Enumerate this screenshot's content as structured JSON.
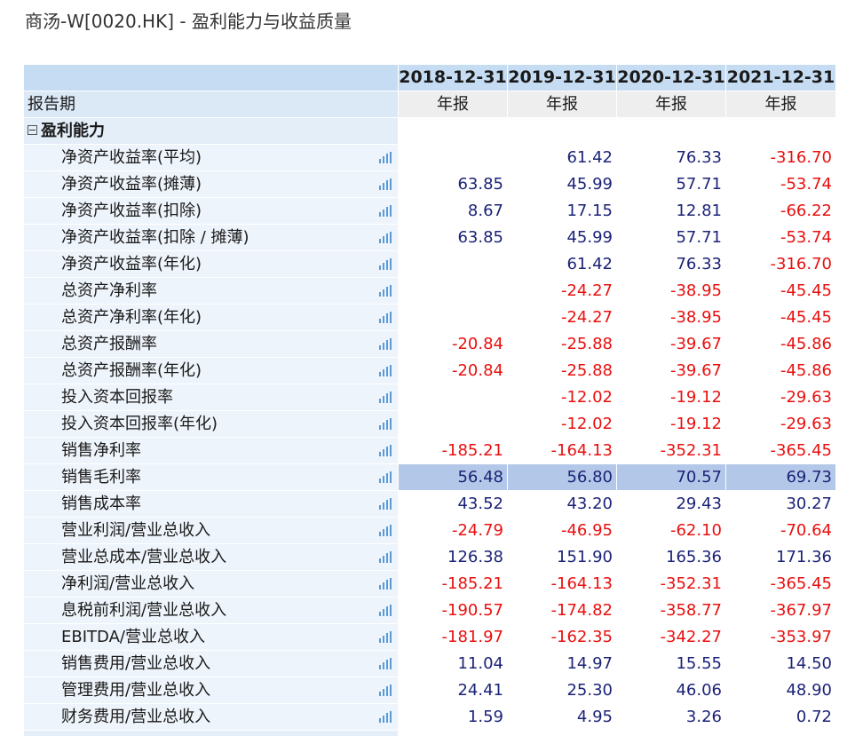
{
  "title": "商汤-W[0020.HK] - 盈利能力与收益质量",
  "header": {
    "period_label": "报告期",
    "years": [
      "2018-12-31",
      "2019-12-31",
      "2020-12-31",
      "2021-12-31"
    ],
    "types": [
      "年报",
      "年报",
      "年报",
      "年报"
    ]
  },
  "section": {
    "label": "盈利能力",
    "toggle_icon": "minus-box-icon"
  },
  "chart_icon": "bar-chart-icon",
  "colors": {
    "positive": "#1c2377",
    "negative": "#e8100f",
    "highlight": "#b3c8e8"
  },
  "rows": [
    {
      "label": "净资产收益率(平均)",
      "values": [
        "",
        "61.42",
        "76.33",
        "-316.70"
      ]
    },
    {
      "label": "净资产收益率(摊薄)",
      "values": [
        "63.85",
        "45.99",
        "57.71",
        "-53.74"
      ]
    },
    {
      "label": "净资产收益率(扣除)",
      "values": [
        "8.67",
        "17.15",
        "12.81",
        "-66.22"
      ]
    },
    {
      "label": "净资产收益率(扣除 / 摊薄)",
      "values": [
        "63.85",
        "45.99",
        "57.71",
        "-53.74"
      ]
    },
    {
      "label": "净资产收益率(年化)",
      "values": [
        "",
        "61.42",
        "76.33",
        "-316.70"
      ]
    },
    {
      "label": "总资产净利率",
      "values": [
        "",
        "-24.27",
        "-38.95",
        "-45.45"
      ]
    },
    {
      "label": "总资产净利率(年化)",
      "values": [
        "",
        "-24.27",
        "-38.95",
        "-45.45"
      ]
    },
    {
      "label": "总资产报酬率",
      "values": [
        "-20.84",
        "-25.88",
        "-39.67",
        "-45.86"
      ]
    },
    {
      "label": "总资产报酬率(年化)",
      "values": [
        "-20.84",
        "-25.88",
        "-39.67",
        "-45.86"
      ]
    },
    {
      "label": "投入资本回报率",
      "values": [
        "",
        "-12.02",
        "-19.12",
        "-29.63"
      ]
    },
    {
      "label": "投入资本回报率(年化)",
      "values": [
        "",
        "-12.02",
        "-19.12",
        "-29.63"
      ]
    },
    {
      "label": "销售净利率",
      "values": [
        "-185.21",
        "-164.13",
        "-352.31",
        "-365.45"
      ]
    },
    {
      "label": "销售毛利率",
      "values": [
        "56.48",
        "56.80",
        "70.57",
        "69.73"
      ],
      "highlight": true
    },
    {
      "label": "销售成本率",
      "values": [
        "43.52",
        "43.20",
        "29.43",
        "30.27"
      ]
    },
    {
      "label": "营业利润/营业总收入",
      "values": [
        "-24.79",
        "-46.95",
        "-62.10",
        "-70.64"
      ]
    },
    {
      "label": "营业总成本/营业总收入",
      "values": [
        "126.38",
        "151.90",
        "165.36",
        "171.36"
      ]
    },
    {
      "label": "净利润/营业总收入",
      "values": [
        "-185.21",
        "-164.13",
        "-352.31",
        "-365.45"
      ]
    },
    {
      "label": "息税前利润/营业总收入",
      "values": [
        "-190.57",
        "-174.82",
        "-358.77",
        "-367.97"
      ]
    },
    {
      "label": "EBITDA/营业总收入",
      "values": [
        "-181.97",
        "-162.35",
        "-342.27",
        "-353.97"
      ]
    },
    {
      "label": "销售费用/营业总收入",
      "values": [
        "11.04",
        "14.97",
        "15.55",
        "14.50"
      ]
    },
    {
      "label": "管理费用/营业总收入",
      "values": [
        "24.41",
        "25.30",
        "46.06",
        "48.90"
      ]
    },
    {
      "label": "财务费用/营业总收入",
      "values": [
        "1.59",
        "4.95",
        "3.26",
        "0.72"
      ]
    }
  ]
}
